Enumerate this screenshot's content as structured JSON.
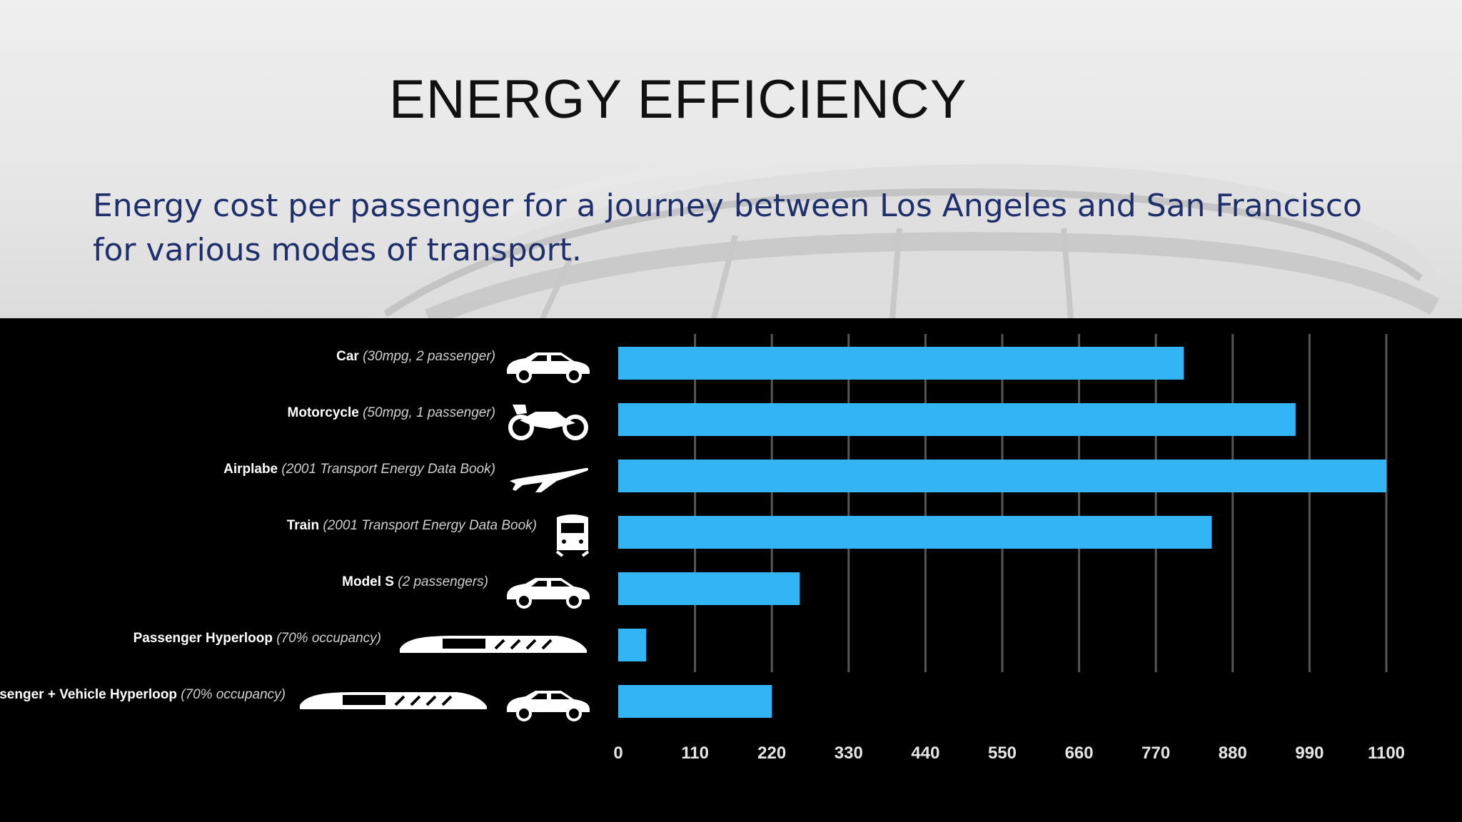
{
  "slide": {
    "title": "ENERGY EFFICIENCY",
    "subtitle": "Energy cost per passenger for a journey between Los Angeles and San Francisco for various modes of transport."
  },
  "colors": {
    "bar": "#33b5f5",
    "panel": "#000000",
    "title": "#111111",
    "subtitle": "#1f2f6b"
  },
  "chart_data": {
    "type": "bar",
    "orientation": "horizontal",
    "categories": [
      {
        "name": "Car",
        "note": "(30mpg, 2 passenger)",
        "icon": "car-icon"
      },
      {
        "name": "Motorcycle",
        "note": "(50mpg, 1 passenger)",
        "icon": "motorcycle-icon"
      },
      {
        "name": "Airplabe",
        "note": "(2001 Transport Energy Data Book)",
        "icon": "airplane-icon"
      },
      {
        "name": "Train",
        "note": "(2001 Transport Energy Data Book)",
        "icon": "train-icon"
      },
      {
        "name": "Model S",
        "note": "(2 passengers)",
        "icon": "car-icon"
      },
      {
        "name": "Passenger Hyperloop",
        "note": "(70% occupancy)",
        "icon": "hyperloop-capsule-icon"
      },
      {
        "name": "Passenger + Vehicle Hyperloop",
        "note": "(70% occupancy)",
        "icon": "hyperloop-capsule-car-icon"
      }
    ],
    "values": [
      810,
      970,
      1100,
      850,
      260,
      40,
      220
    ],
    "xlim": [
      0,
      1100
    ],
    "xticks": [
      "0",
      "110",
      "220",
      "330",
      "440",
      "550",
      "660",
      "770",
      "880",
      "990",
      "1100"
    ],
    "grid": "vertical",
    "xlabel": "",
    "ylabel": ""
  }
}
